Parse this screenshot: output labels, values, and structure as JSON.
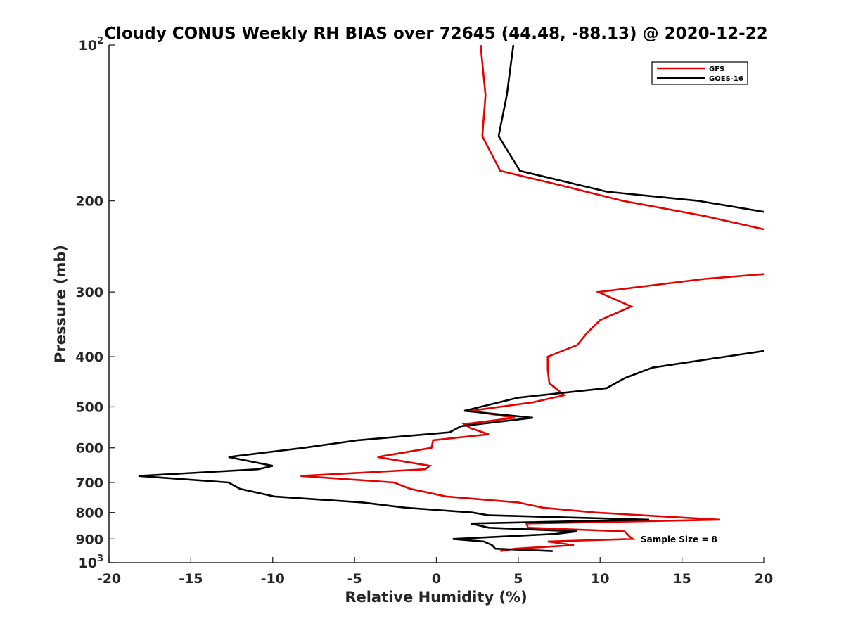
{
  "chart_data": {
    "type": "line",
    "title": "Cloudy CONUS Weekly RH BIAS over 72645 (44.48, -88.13) @ 2020-12-22",
    "xlabel": "Relative Humidity (%)",
    "ylabel": "Pressure (mb)",
    "xlim": [
      -20,
      20
    ],
    "ylim": [
      100,
      1000
    ],
    "y_scale": "log",
    "y_reversed": true,
    "grid": false,
    "legend_position": "top-right",
    "x_ticks": [
      {
        "value": -20,
        "label": "-20"
      },
      {
        "value": -15,
        "label": "-15"
      },
      {
        "value": -10,
        "label": "-10"
      },
      {
        "value": -5,
        "label": "-5"
      },
      {
        "value": 0,
        "label": "0"
      },
      {
        "value": 5,
        "label": "5"
      },
      {
        "value": 10,
        "label": "10"
      },
      {
        "value": 15,
        "label": "15"
      },
      {
        "value": 20,
        "label": "20"
      }
    ],
    "y_ticks": [
      {
        "value": 100,
        "label": "10",
        "sup": "2"
      },
      {
        "value": 200,
        "label": "200",
        "sup": ""
      },
      {
        "value": 300,
        "label": "300",
        "sup": ""
      },
      {
        "value": 400,
        "label": "400",
        "sup": ""
      },
      {
        "value": 500,
        "label": "500",
        "sup": ""
      },
      {
        "value": 600,
        "label": "600",
        "sup": ""
      },
      {
        "value": 700,
        "label": "700",
        "sup": ""
      },
      {
        "value": 800,
        "label": "800",
        "sup": ""
      },
      {
        "value": 900,
        "label": "900",
        "sup": ""
      },
      {
        "value": 1000,
        "label": "10",
        "sup": "3"
      }
    ],
    "annotation": "Sample Size = 8",
    "series": [
      {
        "name": "GFS",
        "color": "#e60000",
        "points": [
          [
            2.7,
            100
          ],
          [
            3.0,
            125
          ],
          [
            2.8,
            150
          ],
          [
            3.9,
            175
          ],
          [
            7.7,
            187
          ],
          [
            11.4,
            200
          ],
          [
            16.4,
            214
          ],
          [
            20.0,
            227
          ],
          [
            null,
            null
          ],
          [
            20.0,
            277
          ],
          [
            16.4,
            283
          ],
          [
            9.9,
            300
          ],
          [
            11.9,
            320
          ],
          [
            10.0,
            340
          ],
          [
            9.2,
            360
          ],
          [
            8.6,
            380
          ],
          [
            6.8,
            400
          ],
          [
            6.8,
            425
          ],
          [
            6.9,
            450
          ],
          [
            7.8,
            475
          ],
          [
            5.9,
            490
          ],
          [
            2.1,
            509
          ],
          [
            4.8,
            525
          ],
          [
            1.7,
            540
          ],
          [
            2.1,
            550
          ],
          [
            3.2,
            565
          ],
          [
            -0.2,
            580
          ],
          [
            -0.3,
            600
          ],
          [
            -3.6,
            625
          ],
          [
            -0.4,
            650
          ],
          [
            -0.7,
            660
          ],
          [
            -8.3,
            680
          ],
          [
            -2.6,
            700
          ],
          [
            -1.6,
            720
          ],
          [
            0.6,
            745
          ],
          [
            5.0,
            765
          ],
          [
            6.5,
            783
          ],
          [
            9.7,
            800
          ],
          [
            17.3,
            826
          ],
          [
            5.5,
            840
          ],
          [
            5.6,
            856
          ],
          [
            11.5,
            870
          ],
          [
            11.8,
            890
          ],
          [
            12.0,
            900
          ],
          [
            6.8,
            910
          ],
          [
            8.4,
            925
          ],
          [
            4.8,
            940
          ],
          [
            3.9,
            950
          ]
        ]
      },
      {
        "name": "GOES-16",
        "color": "#000000",
        "points": [
          [
            4.7,
            100
          ],
          [
            4.3,
            125
          ],
          [
            3.8,
            150
          ],
          [
            5.1,
            175
          ],
          [
            10.4,
            192
          ],
          [
            16.0,
            200
          ],
          [
            20.0,
            210
          ],
          [
            null,
            null
          ],
          [
            20.0,
            390
          ],
          [
            16.5,
            405
          ],
          [
            13.2,
            420
          ],
          [
            11.5,
            440
          ],
          [
            10.4,
            460
          ],
          [
            5.0,
            480
          ],
          [
            1.7,
            509
          ],
          [
            5.9,
            525
          ],
          [
            1.5,
            545
          ],
          [
            0.8,
            560
          ],
          [
            -4.8,
            580
          ],
          [
            -8.1,
            600
          ],
          [
            -12.7,
            625
          ],
          [
            -10.0,
            650
          ],
          [
            -10.9,
            660
          ],
          [
            -18.2,
            680
          ],
          [
            -12.7,
            700
          ],
          [
            -12.0,
            720
          ],
          [
            -9.9,
            745
          ],
          [
            -4.5,
            765
          ],
          [
            -1.9,
            783
          ],
          [
            2.2,
            800
          ],
          [
            3.2,
            810
          ],
          [
            13.0,
            826
          ],
          [
            2.1,
            840
          ],
          [
            3.2,
            856
          ],
          [
            8.6,
            870
          ],
          [
            7.3,
            880
          ],
          [
            1.0,
            900
          ],
          [
            2.9,
            910
          ],
          [
            3.4,
            925
          ],
          [
            3.6,
            940
          ],
          [
            7.1,
            950
          ]
        ]
      }
    ]
  }
}
